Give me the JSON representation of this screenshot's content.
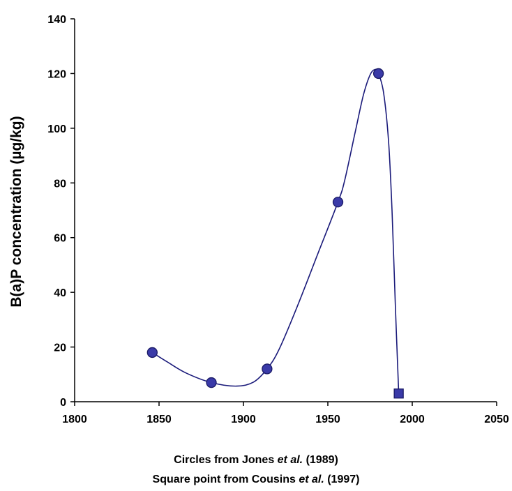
{
  "chart_data": {
    "type": "scatter",
    "title": "",
    "xlabel": "",
    "ylabel": "B(a)P concentration (µg/kg)",
    "xlim": [
      1800,
      2050
    ],
    "ylim": [
      0,
      140
    ],
    "x_ticks": [
      1800,
      1850,
      1900,
      1950,
      2000,
      2050
    ],
    "y_ticks": [
      0,
      20,
      40,
      60,
      80,
      100,
      120,
      140
    ],
    "grid": false,
    "legend": "none",
    "colors": {
      "line": "#1a1a7a",
      "marker_fill": "#3a3aa8",
      "marker_stroke": "#1a1a66",
      "axis": "#000000"
    },
    "series": [
      {
        "marker": "circle",
        "points": [
          {
            "x": 1846,
            "y": 18
          },
          {
            "x": 1881,
            "y": 7
          },
          {
            "x": 1914,
            "y": 12
          },
          {
            "x": 1956,
            "y": 73
          },
          {
            "x": 1980,
            "y": 120
          }
        ]
      },
      {
        "marker": "square",
        "points": [
          {
            "x": 1992,
            "y": 3
          }
        ]
      }
    ],
    "curve": [
      {
        "x": 1846,
        "y": 18
      },
      {
        "x": 1855,
        "y": 14.5
      },
      {
        "x": 1866,
        "y": 10.5
      },
      {
        "x": 1881,
        "y": 7
      },
      {
        "x": 1896,
        "y": 5.7
      },
      {
        "x": 1906,
        "y": 7.2
      },
      {
        "x": 1914,
        "y": 12
      },
      {
        "x": 1921,
        "y": 19
      },
      {
        "x": 1932,
        "y": 35
      },
      {
        "x": 1944,
        "y": 54
      },
      {
        "x": 1956,
        "y": 73
      },
      {
        "x": 1960,
        "y": 81
      },
      {
        "x": 1966,
        "y": 98
      },
      {
        "x": 1971,
        "y": 112
      },
      {
        "x": 1975,
        "y": 119.5
      },
      {
        "x": 1978,
        "y": 121.5
      },
      {
        "x": 1980,
        "y": 120
      },
      {
        "x": 1983,
        "y": 113
      },
      {
        "x": 1986,
        "y": 95
      },
      {
        "x": 1988,
        "y": 70
      },
      {
        "x": 1990,
        "y": 35
      },
      {
        "x": 1992,
        "y": 3
      }
    ],
    "captions": [
      {
        "parts": [
          {
            "text": "Circles from Jones ",
            "italic": false
          },
          {
            "text": "et al.",
            "italic": true
          },
          {
            "text": " (1989)",
            "italic": false
          }
        ]
      },
      {
        "parts": [
          {
            "text": "Square point from Cousins ",
            "italic": false
          },
          {
            "text": "et al.",
            "italic": true
          },
          {
            "text": " (1997)",
            "italic": false
          }
        ]
      }
    ]
  }
}
